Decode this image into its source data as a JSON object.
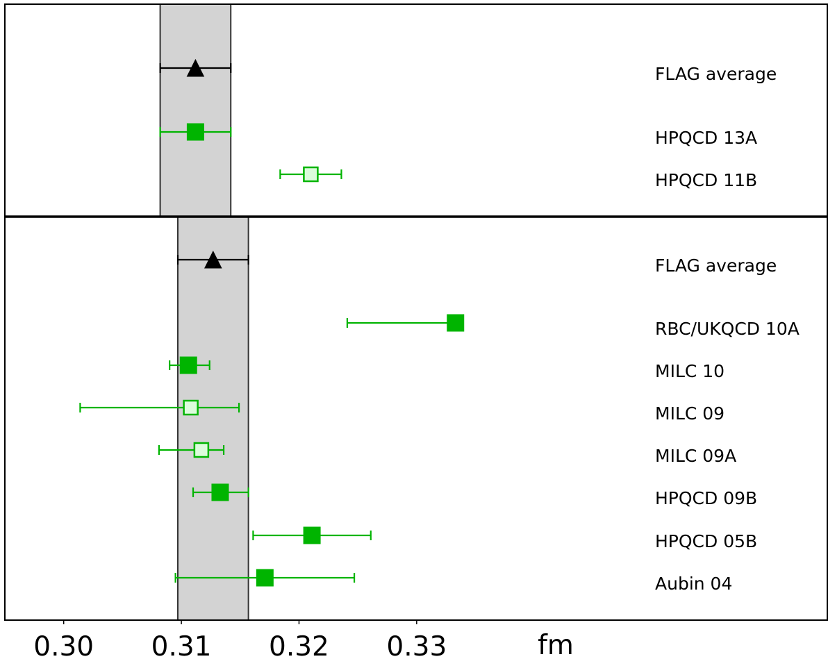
{
  "chart_data": {
    "type": "scatter",
    "xlabel": "fm",
    "xlim": [
      0.295,
      0.3649
    ],
    "xticks": [
      0.3,
      0.31,
      0.32,
      0.33
    ],
    "xtick_labels": [
      "0.30",
      "0.31",
      "0.32",
      "0.33"
    ],
    "grid": false,
    "panels": [
      {
        "band": [
          0.3082,
          0.3142
        ],
        "points": [
          {
            "label": "FLAG average",
            "x": 0.3112,
            "lo": 0.3082,
            "hi": 0.3142,
            "marker": "triangle",
            "color": "#000000",
            "fill": "#000000"
          },
          {
            "label": "HPQCD 13A",
            "x": 0.3112,
            "lo": 0.3082,
            "hi": 0.3142,
            "marker": "square",
            "color": "#00b400",
            "fill": "#00b400"
          },
          {
            "label": "HPQCD 11B",
            "x": 0.321,
            "lo": 0.3184,
            "hi": 0.3236,
            "marker": "square",
            "color": "#00b400",
            "fill": "#dcfcdc"
          }
        ]
      },
      {
        "band": [
          0.3097,
          0.3157
        ],
        "points": [
          {
            "label": "FLAG average",
            "x": 0.3127,
            "lo": 0.3097,
            "hi": 0.3157,
            "marker": "triangle",
            "color": "#000000",
            "fill": "#000000"
          },
          {
            "label": "RBC/UKQCD 10A",
            "x": 0.3333,
            "lo": 0.3241,
            "hi": 0.3335,
            "marker": "square",
            "color": "#00b400",
            "fill": "#00b400"
          },
          {
            "label": "MILC 10",
            "x": 0.3106,
            "lo": 0.309,
            "hi": 0.3124,
            "marker": "square",
            "color": "#00b400",
            "fill": "#00b400"
          },
          {
            "label": "MILC 09",
            "x": 0.3108,
            "lo": 0.3014,
            "hi": 0.3149,
            "marker": "square",
            "color": "#00b400",
            "fill": "#dcfcdc"
          },
          {
            "label": "MILC 09A",
            "x": 0.3117,
            "lo": 0.3081,
            "hi": 0.3136,
            "marker": "square",
            "color": "#00b400",
            "fill": "#dcfcdc"
          },
          {
            "label": "HPQCD 09B",
            "x": 0.3133,
            "lo": 0.311,
            "hi": 0.3157,
            "marker": "square",
            "color": "#00b400",
            "fill": "#00b400"
          },
          {
            "label": "HPQCD 05B",
            "x": 0.3211,
            "lo": 0.3161,
            "hi": 0.3261,
            "marker": "square",
            "color": "#00b400",
            "fill": "#00b400"
          },
          {
            "label": "Aubin 04",
            "x": 0.3171,
            "lo": 0.3095,
            "hi": 0.3247,
            "marker": "square",
            "color": "#00b400",
            "fill": "#00b400"
          }
        ]
      }
    ]
  }
}
